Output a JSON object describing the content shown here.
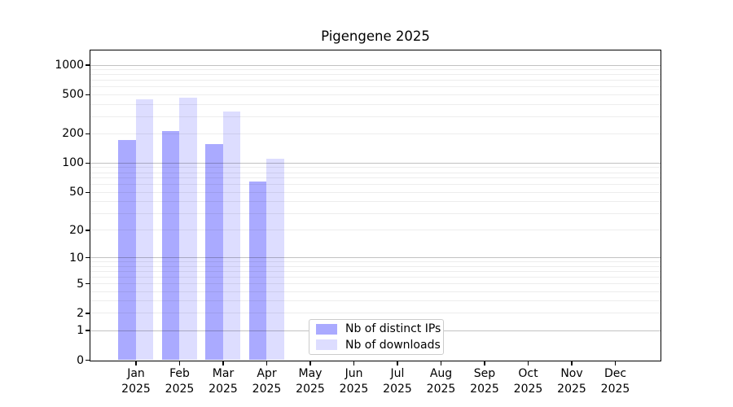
{
  "chart_data": {
    "type": "bar",
    "title": "Pigengene 2025",
    "categories": [
      "Jan",
      "Feb",
      "Mar",
      "Apr",
      "May",
      "Jun",
      "Jul",
      "Aug",
      "Sep",
      "Oct",
      "Nov",
      "Dec"
    ],
    "x_tick_year": "2025",
    "series": [
      {
        "name": "Nb of distinct IPs",
        "color": "#aaaaff",
        "values": [
          170,
          210,
          155,
          64,
          null,
          null,
          null,
          null,
          null,
          null,
          null,
          null
        ]
      },
      {
        "name": "Nb of downloads",
        "color": "#ddddff",
        "values": [
          445,
          465,
          335,
          110,
          null,
          null,
          null,
          null,
          null,
          null,
          null,
          null
        ]
      }
    ],
    "y_ticks": [
      0,
      1,
      2,
      5,
      10,
      20,
      50,
      100,
      200,
      500,
      1000
    ],
    "y_scale": "log1p",
    "ylim": [
      0,
      1400
    ],
    "xlabel": "",
    "ylabel": "",
    "grid": true,
    "grid_major_values": [
      1,
      10,
      100,
      1000
    ],
    "grid_minor_values": [
      2,
      3,
      4,
      5,
      6,
      7,
      8,
      9,
      20,
      30,
      40,
      50,
      60,
      70,
      80,
      90,
      200,
      300,
      400,
      500,
      600,
      700,
      800,
      900
    ],
    "grid_major_color": "rgba(0,0,0,0.24)",
    "grid_minor_color": "rgba(0,0,0,0.07)",
    "axis_color": "#000000",
    "legend_position": "lower center"
  },
  "legend": {
    "border_color": "#cccccc",
    "background": "#ffffff"
  }
}
